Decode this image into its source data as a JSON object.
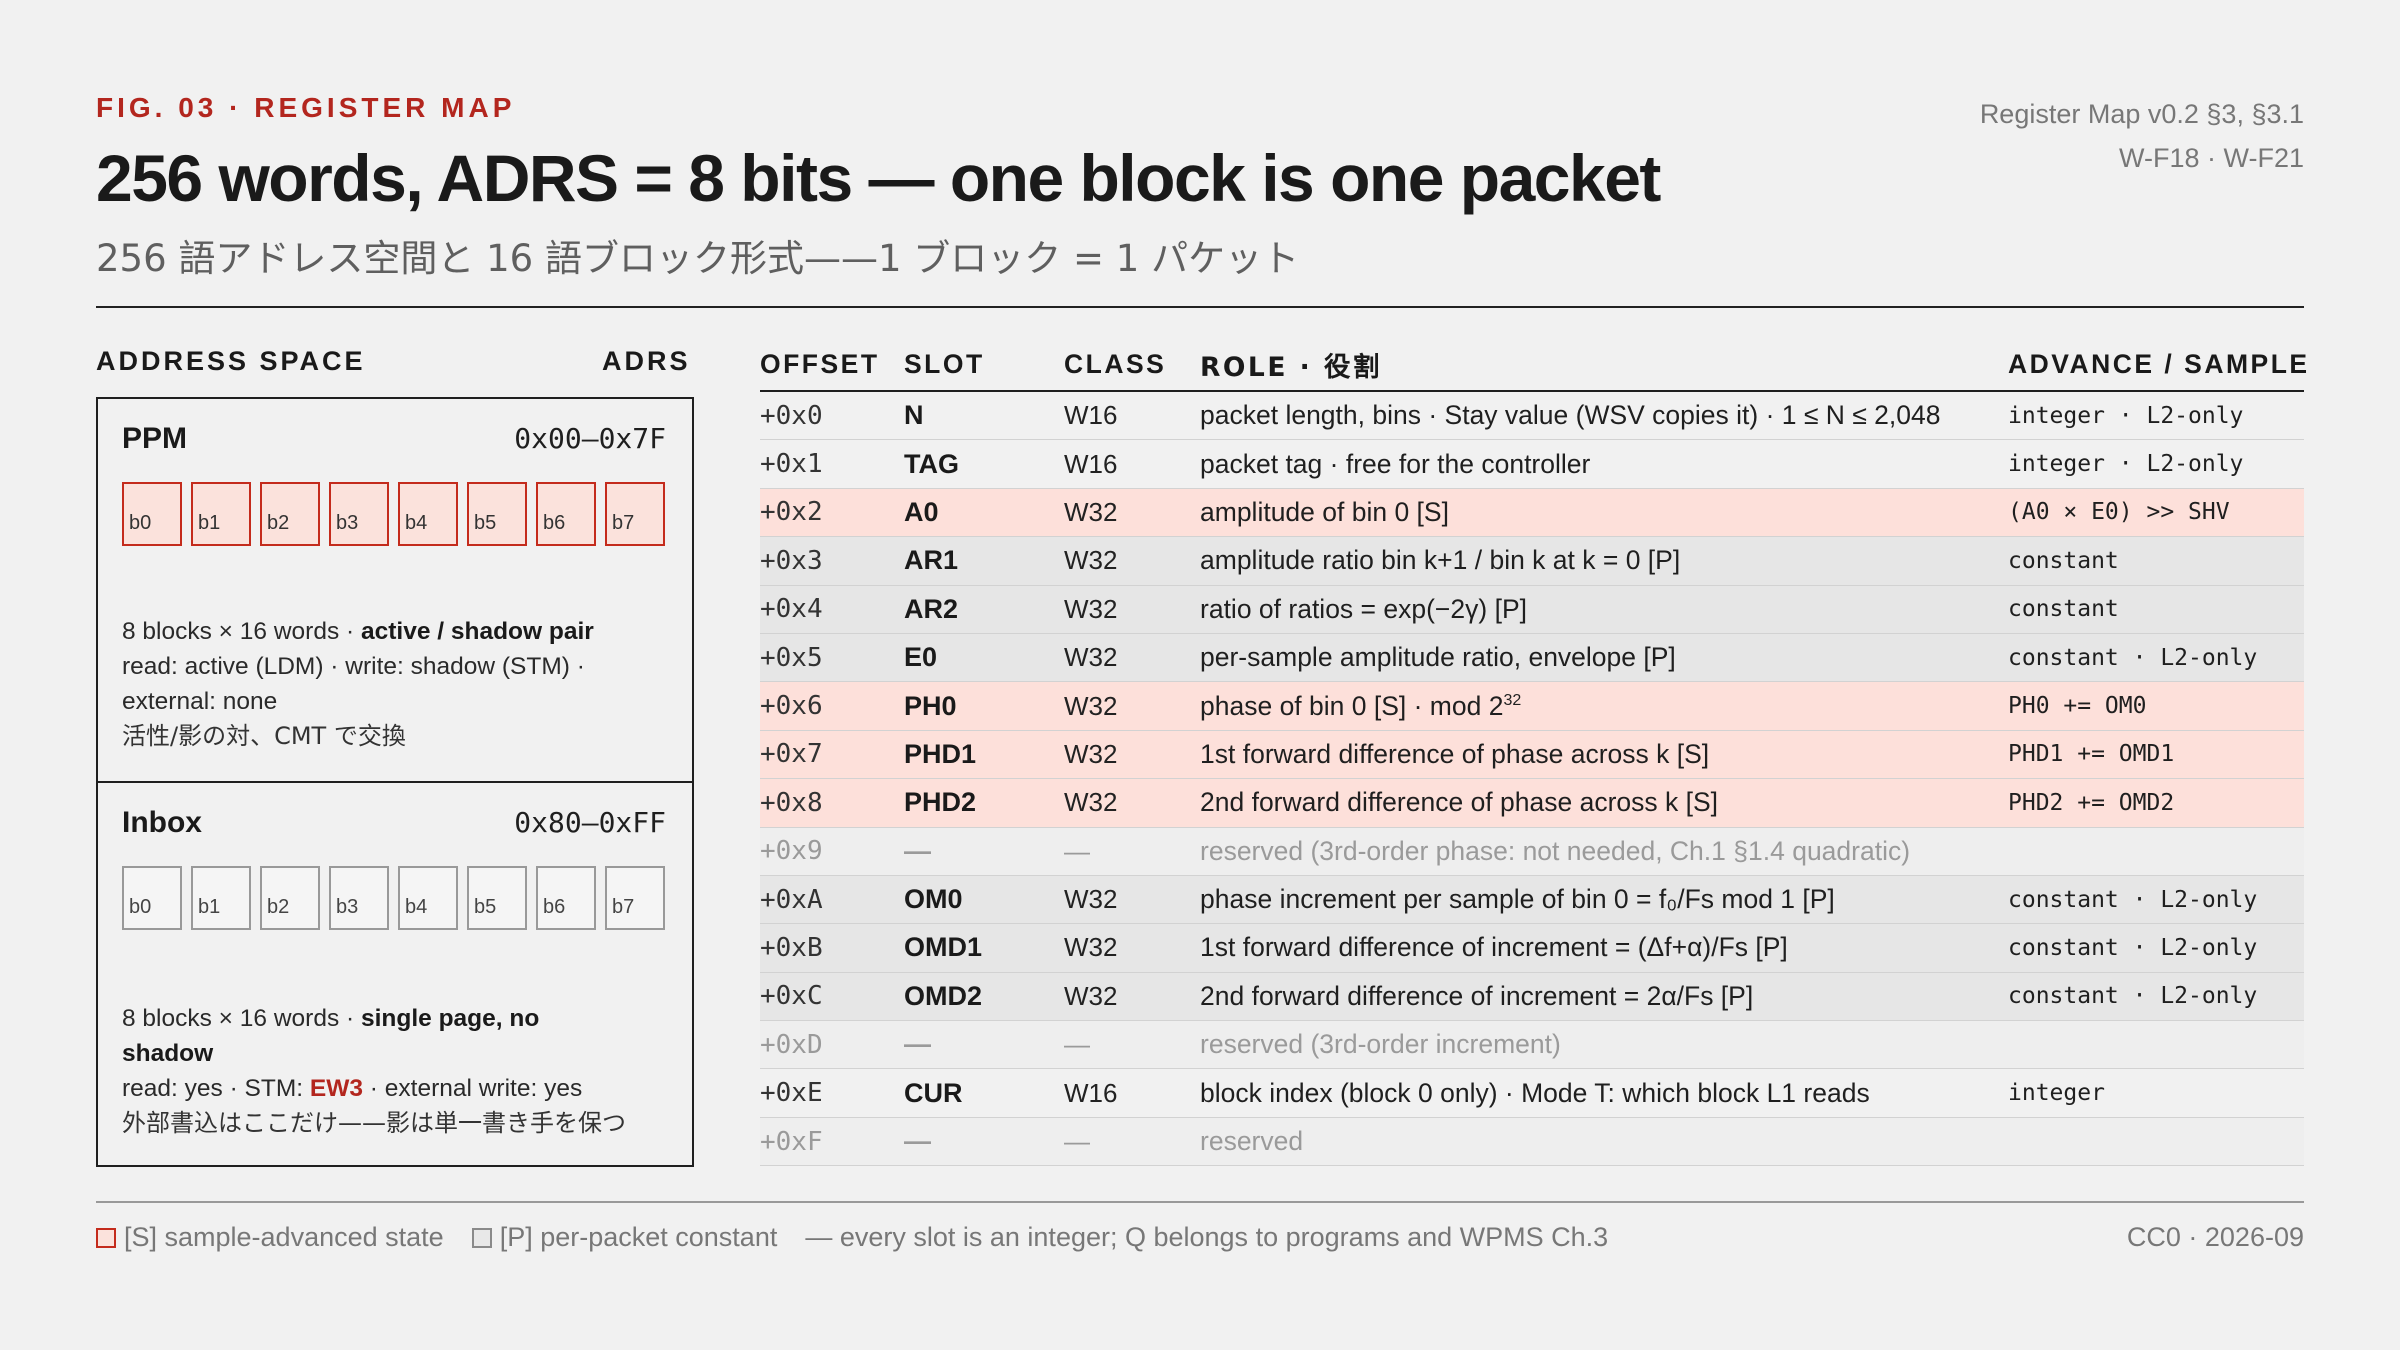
{
  "header": {
    "fig_label": "FIG. 03 · REGISTER MAP",
    "title": "256 words, ADRS = 8 bits — one block is one packet",
    "subtitle": "256 語アドレス空間と 16 語ブロック形式——1 ブロック = 1 パケット",
    "ref_line1": "Register Map v0.2 §3, §3.1",
    "ref_line2": "W-F18 · W-F21"
  },
  "address_space": {
    "heading": "ADDRESS SPACE",
    "adrs_heading": "ADRS",
    "ppm": {
      "name": "PPM",
      "range": "0x00–0x7F",
      "blocks": [
        "b0",
        "b1",
        "b2",
        "b3",
        "b4",
        "b5",
        "b6",
        "b7"
      ],
      "desc_a": "8 blocks × 16 words · ",
      "desc_a_bold": "active / shadow pair",
      "desc_b": "read: active (LDM) · write: shadow (STM) ·",
      "desc_c": "external: none",
      "desc_ja": "活性/影の対、CMT で交換"
    },
    "inbox": {
      "name": "Inbox",
      "range": "0x80–0xFF",
      "blocks": [
        "b0",
        "b1",
        "b2",
        "b3",
        "b4",
        "b5",
        "b6",
        "b7"
      ],
      "desc_a": "8 blocks × 16 words · ",
      "desc_a_bold": "single page, no",
      "desc_a_bold2": "shadow",
      "desc_b_pre": "read: yes · STM: ",
      "desc_b_red": "EW3",
      "desc_b_post": " · external write: yes",
      "desc_ja": "外部書込はここだけ——影は単一書き手を保つ"
    }
  },
  "table": {
    "headers": {
      "offset": "OFFSET",
      "slot": "SLOT",
      "class": "CLASS",
      "role": "ROLE · 役割",
      "advance": "ADVANCE / SAMPLE"
    },
    "rows": [
      {
        "offset": "+0x0",
        "slot": "N",
        "class": "W16",
        "role": "packet length, bins · Stay value (WSV copies it) · 1 ≤ N ≤ 2,048",
        "advance": "integer · L2-only",
        "kind": "plain"
      },
      {
        "offset": "+0x1",
        "slot": "TAG",
        "class": "W16",
        "role": "packet tag · free for the controller",
        "advance": "integer · L2-only",
        "kind": "plain"
      },
      {
        "offset": "+0x2",
        "slot": "A0",
        "class": "W32",
        "role": "amplitude of bin 0 [S]",
        "advance": "(A0 × E0) >> SHV",
        "kind": "state"
      },
      {
        "offset": "+0x3",
        "slot": "AR1",
        "class": "W32",
        "role": "amplitude ratio bin k+1 / bin k at k = 0 [P]",
        "advance": "constant",
        "kind": "const"
      },
      {
        "offset": "+0x4",
        "slot": "AR2",
        "class": "W32",
        "role": "ratio of ratios = exp(−2γ) [P]",
        "advance": "constant",
        "kind": "const"
      },
      {
        "offset": "+0x5",
        "slot": "E0",
        "class": "W32",
        "role": "per-sample amplitude ratio, envelope [P]",
        "advance": "constant · L2-only",
        "kind": "const"
      },
      {
        "offset": "+0x6",
        "slot": "PH0",
        "class": "W32",
        "role": "phase of bin 0 [S] · mod 2",
        "role_sup": "32",
        "advance": "PH0 += OM0",
        "kind": "state"
      },
      {
        "offset": "+0x7",
        "slot": "PHD1",
        "class": "W32",
        "role": "1st forward difference of phase across k [S]",
        "advance": "PHD1 += OMD1",
        "kind": "state"
      },
      {
        "offset": "+0x8",
        "slot": "PHD2",
        "class": "W32",
        "role": "2nd forward difference of phase across k [S]",
        "advance": "PHD2 += OMD2",
        "kind": "state"
      },
      {
        "offset": "+0x9",
        "slot": "—",
        "class": "—",
        "role": "reserved (3rd-order phase: not needed, Ch.1 §1.4 quadratic)",
        "advance": "",
        "kind": "reserved"
      },
      {
        "offset": "+0xA",
        "slot": "OM0",
        "class": "W32",
        "role": "phase increment per sample of bin 0 = f₀/Fs mod 1 [P]",
        "advance": "constant · L2-only",
        "kind": "const"
      },
      {
        "offset": "+0xB",
        "slot": "OMD1",
        "class": "W32",
        "role": "1st forward difference of increment = (Δf+α)/Fs [P]",
        "advance": "constant · L2-only",
        "kind": "const"
      },
      {
        "offset": "+0xC",
        "slot": "OMD2",
        "class": "W32",
        "role": "2nd forward difference of increment = 2α/Fs [P]",
        "advance": "constant · L2-only",
        "kind": "const"
      },
      {
        "offset": "+0xD",
        "slot": "—",
        "class": "—",
        "role": "reserved (3rd-order increment)",
        "advance": "",
        "kind": "reserved"
      },
      {
        "offset": "+0xE",
        "slot": "CUR",
        "class": "W16",
        "role": "block index (block 0 only) · Mode T: which block L1 reads",
        "advance": "integer",
        "kind": "plain"
      },
      {
        "offset": "+0xF",
        "slot": "—",
        "class": "—",
        "role": "reserved",
        "advance": "",
        "kind": "reserved"
      }
    ]
  },
  "footer": {
    "legend_state": "[S] sample-advanced state",
    "legend_const": "[P] per-packet constant",
    "legend_note": "— every slot is an integer; Q belongs to programs and WPMS Ch.3",
    "credit": "CC0 · 2026-09"
  },
  "colors": {
    "accent": "#b3261e",
    "state_row": "#fde0da",
    "const_row": "#e6e6e6"
  }
}
